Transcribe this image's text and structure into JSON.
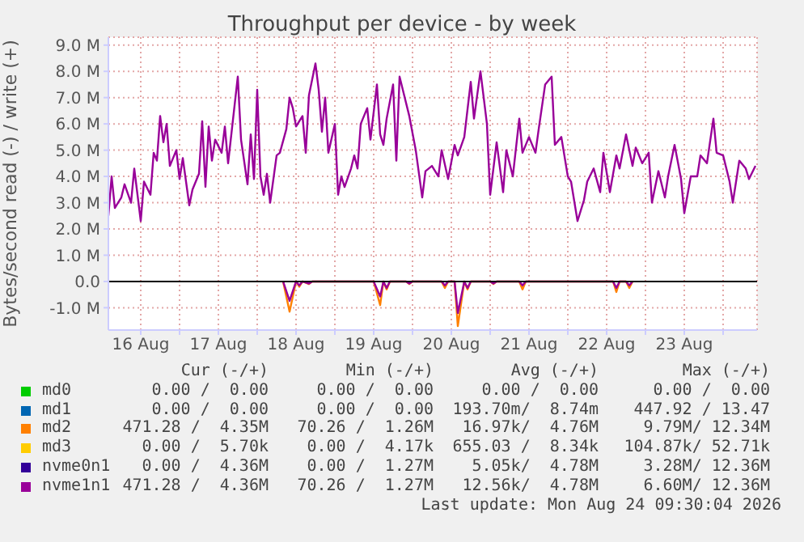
{
  "chart_data": {
    "type": "line",
    "title": "Throughput per device - by week",
    "ylabel": "Bytes/second read (-) / write (+)",
    "x": [
      "2026-08-16T02:00",
      "2026-08-16T03:00",
      "2026-08-16T04:00",
      "2026-08-16T06:00",
      "2026-08-16T07:00",
      "2026-08-16T09:00",
      "2026-08-16T10:00",
      "2026-08-16T12:00",
      "2026-08-16T13:00",
      "2026-08-16T15:00",
      "2026-08-16T16:00",
      "2026-08-16T17:00",
      "2026-08-16T18:00",
      "2026-08-16T19:00",
      "2026-08-16T20:00",
      "2026-08-16T21:00",
      "2026-08-16T23:00",
      "2026-08-17T00:00",
      "2026-08-17T01:00",
      "2026-08-17T03:00",
      "2026-08-17T04:00",
      "2026-08-17T06:00",
      "2026-08-17T07:00",
      "2026-08-17T08:00",
      "2026-08-17T09:00",
      "2026-08-17T10:00",
      "2026-08-17T11:00",
      "2026-08-17T13:00",
      "2026-08-17T14:00",
      "2026-08-17T15:00",
      "2026-08-17T16:00",
      "2026-08-17T18:00",
      "2026-08-17T19:00",
      "2026-08-17T21:00",
      "2026-08-17T22:00",
      "2026-08-17T23:00",
      "2026-08-18T00:00",
      "2026-08-18T01:00",
      "2026-08-18T02:00",
      "2026-08-18T03:00",
      "2026-08-18T04:00",
      "2026-08-18T06:00",
      "2026-08-18T07:00",
      "2026-08-18T09:00",
      "2026-08-18T10:00",
      "2026-08-18T11:00",
      "2026-08-18T12:00",
      "2026-08-18T14:00",
      "2026-08-18T15:00",
      "2026-08-18T16:00",
      "2026-08-18T18:00",
      "2026-08-18T19:00",
      "2026-08-18T20:00",
      "2026-08-18T21:00",
      "2026-08-18T22:00",
      "2026-08-19T00:00",
      "2026-08-19T01:00",
      "2026-08-19T02:00",
      "2026-08-19T03:00",
      "2026-08-19T05:00",
      "2026-08-19T06:00",
      "2026-08-19T07:00",
      "2026-08-19T08:00",
      "2026-08-19T10:00",
      "2026-08-19T11:00",
      "2026-08-19T13:00",
      "2026-08-19T14:00",
      "2026-08-19T15:00",
      "2026-08-19T16:00",
      "2026-08-19T18:00",
      "2026-08-19T19:00",
      "2026-08-19T20:00",
      "2026-08-19T21:00",
      "2026-08-19T23:00",
      "2026-08-20T01:00",
      "2026-08-20T03:00",
      "2026-08-20T04:00",
      "2026-08-20T06:00",
      "2026-08-20T08:00",
      "2026-08-20T09:00",
      "2026-08-20T11:00",
      "2026-08-20T13:00",
      "2026-08-20T14:00",
      "2026-08-20T16:00",
      "2026-08-20T18:00",
      "2026-08-20T19:00",
      "2026-08-20T21:00",
      "2026-08-20T23:00",
      "2026-08-21T00:00",
      "2026-08-21T02:00",
      "2026-08-21T04:00",
      "2026-08-21T05:00",
      "2026-08-21T07:00",
      "2026-08-21T09:00",
      "2026-08-21T10:00",
      "2026-08-21T12:00",
      "2026-08-21T14:00",
      "2026-08-21T15:00",
      "2026-08-21T17:00",
      "2026-08-21T19:00",
      "2026-08-21T20:00",
      "2026-08-21T22:00",
      "2026-08-22T00:00",
      "2026-08-22T01:00",
      "2026-08-22T03:00",
      "2026-08-22T05:00",
      "2026-08-22T06:00",
      "2026-08-22T08:00",
      "2026-08-22T10:00",
      "2026-08-22T11:00",
      "2026-08-22T13:00",
      "2026-08-22T15:00",
      "2026-08-22T16:00",
      "2026-08-22T18:00",
      "2026-08-22T20:00",
      "2026-08-22T21:00",
      "2026-08-22T23:00",
      "2026-08-23T01:00",
      "2026-08-23T02:00",
      "2026-08-23T04:00",
      "2026-08-23T06:00",
      "2026-08-23T07:00",
      "2026-08-23T09:00",
      "2026-08-23T11:00",
      "2026-08-23T12:00",
      "2026-08-23T14:00",
      "2026-08-23T16:00",
      "2026-08-23T17:00",
      "2026-08-23T19:00",
      "2026-08-23T21:00",
      "2026-08-23T22:00",
      "2026-08-24T00:00",
      "2026-08-24T02:00",
      "2026-08-24T03:00",
      "2026-08-24T05:00",
      "2026-08-24T07:00",
      "2026-08-24T08:00",
      "2026-08-24T10:00"
    ],
    "series": [
      {
        "name": "md0",
        "color": "#00cc00",
        "values": [
          null,
          null,
          null,
          null,
          null,
          null,
          null,
          null,
          null,
          null,
          null,
          null,
          null,
          null,
          null,
          null,
          null,
          null,
          null,
          null,
          null,
          null,
          null,
          null,
          null,
          null,
          null,
          null,
          null,
          null,
          null,
          null,
          null,
          null,
          null,
          null,
          null,
          null,
          null,
          null,
          null,
          null,
          null,
          null,
          null,
          null,
          null,
          null,
          null,
          null,
          null,
          null,
          null,
          null,
          null,
          null,
          null,
          null,
          null,
          null,
          null,
          null,
          null,
          null,
          null,
          null,
          null,
          null,
          null,
          null,
          null,
          null,
          null,
          null,
          null,
          null,
          null,
          null,
          null,
          null,
          null,
          null,
          null,
          null,
          null,
          null,
          null,
          null,
          null,
          null,
          null,
          null,
          null,
          null,
          null,
          null,
          null,
          null,
          null,
          null,
          null,
          null,
          null,
          null,
          null,
          null,
          null,
          null,
          null,
          null,
          null,
          null,
          null,
          null,
          null,
          null,
          null,
          null,
          null,
          null,
          null,
          null,
          null,
          null,
          null,
          null,
          null,
          null,
          null,
          null,
          null,
          null,
          null,
          null,
          null,
          null,
          null,
          null
        ]
      },
      {
        "name": "md1",
        "color": "#0066b3",
        "values": [
          null,
          null,
          null,
          null,
          null,
          null,
          null,
          null,
          null,
          null,
          null,
          null,
          null,
          null,
          null,
          null,
          null,
          null,
          null,
          null,
          null,
          null,
          null,
          null,
          null,
          null,
          null,
          null,
          null,
          null,
          null,
          null,
          null,
          null,
          null,
          null,
          null,
          null,
          null,
          null,
          null,
          null,
          null,
          null,
          null,
          null,
          null,
          null,
          null,
          null,
          null,
          null,
          null,
          null,
          null,
          null,
          null,
          null,
          null,
          null,
          null,
          null,
          null,
          null,
          null,
          null,
          null,
          null,
          null,
          null,
          null,
          null,
          null,
          null,
          null,
          null,
          null,
          null,
          null,
          null,
          null,
          null,
          null,
          null,
          null,
          null,
          null,
          null,
          null,
          null,
          null,
          null,
          null,
          null,
          null,
          null,
          null,
          null,
          null,
          null,
          null,
          null,
          null,
          null,
          null,
          null,
          null,
          null,
          null,
          null,
          null,
          null,
          null,
          null,
          null,
          null,
          null,
          null,
          null,
          null,
          null,
          null,
          null,
          null,
          null,
          null,
          null,
          null,
          null,
          null,
          null,
          null,
          null,
          null,
          null,
          null,
          null,
          null
        ]
      },
      {
        "name": "md2",
        "color": "#ff8000",
        "x": [
          "2026-08-18T08:00",
          "2026-08-18T10:00",
          "2026-08-18T12:00",
          "2026-08-18T13:00",
          "2026-08-18T14:00",
          "2026-08-18T16:00",
          "2026-08-18T17:00",
          "2026-08-19T12:00",
          "2026-08-19T14:00",
          "2026-08-19T15:00",
          "2026-08-19T16:00",
          "2026-08-19T17:00",
          "2026-08-19T22:00",
          "2026-08-19T23:00",
          "2026-08-20T00:00",
          "2026-08-20T09:00",
          "2026-08-20T10:00",
          "2026-08-20T11:00",
          "2026-08-20T13:00",
          "2026-08-20T14:00",
          "2026-08-20T16:00",
          "2026-08-20T17:00",
          "2026-08-20T18:00",
          "2026-08-21T00:00",
          "2026-08-21T01:00",
          "2026-08-21T02:00",
          "2026-08-21T09:00",
          "2026-08-21T10:00",
          "2026-08-21T11:00",
          "2026-08-22T14:00",
          "2026-08-22T15:00",
          "2026-08-22T16:00",
          "2026-08-22T18:00",
          "2026-08-22T19:00",
          "2026-08-22T20:00"
        ],
        "values": [
          0,
          -1150000,
          0,
          -200000,
          0,
          -100000,
          0,
          0,
          -900000,
          0,
          -300000,
          0,
          0,
          -100000,
          0,
          0,
          -250000,
          0,
          0,
          -1700000,
          0,
          -300000,
          0,
          0,
          -100000,
          0,
          0,
          -300000,
          0,
          0,
          -400000,
          0,
          0,
          -250000,
          0
        ]
      },
      {
        "name": "md3",
        "color": "#ffcc00",
        "values": [
          null,
          null,
          null,
          null,
          null,
          null,
          null,
          null,
          null,
          null,
          null,
          null,
          null,
          null,
          null,
          null,
          null,
          null,
          null,
          null,
          null,
          null,
          null,
          null,
          null,
          null,
          null,
          null,
          null,
          null,
          null,
          null,
          null,
          null,
          null,
          null,
          null,
          null,
          null,
          null,
          null,
          null,
          null,
          null,
          null,
          null,
          null,
          null,
          null,
          null,
          null,
          null,
          null,
          null,
          null,
          null,
          null,
          null,
          null,
          null,
          null,
          null,
          null,
          null,
          null,
          null,
          null,
          null,
          null,
          null,
          null,
          null,
          null,
          null,
          null,
          null,
          null,
          null,
          null,
          null,
          null,
          null,
          null,
          null,
          null,
          null,
          null,
          null,
          null,
          null,
          null,
          null,
          null,
          null,
          null,
          null,
          null,
          null,
          null,
          null,
          null,
          null,
          null,
          null,
          null,
          null,
          null,
          null,
          null,
          null,
          null,
          null,
          null,
          null,
          null,
          null,
          null,
          null,
          null,
          null,
          null,
          null,
          null,
          null,
          null,
          null,
          null,
          null,
          null,
          null,
          null,
          null,
          null,
          null,
          null,
          null,
          null,
          null
        ]
      },
      {
        "name": "nvme0n1",
        "color": "#330099",
        "values": [
          null,
          null,
          null,
          null,
          null,
          null,
          null,
          null,
          null,
          null,
          null,
          null,
          null,
          null,
          null,
          null,
          null,
          null,
          null,
          null,
          null,
          null,
          null,
          null,
          null,
          null,
          null,
          null,
          null,
          null,
          null,
          null,
          null,
          null,
          null,
          null,
          null,
          null,
          null,
          null,
          null,
          null,
          null,
          null,
          null,
          null,
          null,
          null,
          null,
          null,
          null,
          null,
          null,
          null,
          null,
          null,
          null,
          null,
          null,
          null,
          null,
          null,
          null,
          null,
          null,
          null,
          null,
          null,
          null,
          null,
          null,
          null,
          null,
          null,
          null,
          null,
          null,
          null,
          null,
          null,
          null,
          null,
          null,
          null,
          null,
          null,
          null,
          null,
          null,
          null,
          null,
          null,
          null,
          null,
          null,
          null,
          null,
          null,
          null,
          null,
          null,
          null,
          null,
          null,
          null,
          null,
          null,
          null,
          null,
          null,
          null,
          null,
          null,
          null,
          null,
          null,
          null,
          null,
          null,
          null,
          null,
          null,
          null,
          null,
          null,
          null,
          null,
          null,
          null,
          null,
          null,
          null,
          null,
          null,
          null,
          null,
          null,
          null
        ]
      },
      {
        "name": "nvme1n1",
        "color": "#990099",
        "values": [
          2500000,
          4000000,
          2800000,
          3200000,
          3700000,
          3000000,
          4300000,
          2300000,
          3800000,
          3300000,
          4900000,
          4600000,
          6300000,
          5300000,
          6000000,
          4400000,
          5000000,
          3900000,
          4700000,
          2900000,
          3500000,
          4100000,
          6100000,
          3600000,
          5900000,
          4600000,
          5400000,
          4900000,
          5900000,
          4500000,
          5600000,
          7800000,
          5400000,
          3700000,
          5600000,
          3900000,
          7300000,
          4000000,
          3300000,
          4100000,
          3000000,
          4800000,
          4900000,
          5800000,
          7000000,
          6600000,
          5900000,
          6300000,
          4900000,
          7100000,
          8300000,
          7300000,
          5700000,
          7000000,
          4900000,
          6000000,
          3300000,
          4000000,
          3600000,
          4300000,
          4800000,
          4300000,
          6000000,
          6600000,
          5400000,
          7500000,
          5600000,
          5200000,
          6200000,
          7500000,
          4600000,
          7800000,
          7300000,
          6300000,
          5000000,
          3200000,
          4200000,
          4400000,
          4000000,
          5000000,
          3900000,
          5200000,
          4800000,
          5500000,
          7600000,
          6200000,
          8000000,
          6000000,
          3300000,
          5300000,
          3400000,
          5000000,
          4000000,
          6200000,
          4900000,
          5500000,
          4900000,
          5800000,
          7500000,
          7800000,
          5200000,
          5500000,
          4000000,
          3800000,
          2300000,
          3100000,
          3800000,
          4300000,
          3400000,
          4900000,
          3400000,
          4800000,
          4300000,
          5600000,
          4400000,
          5100000,
          4500000,
          4900000,
          3000000,
          4200000,
          3200000,
          4000000,
          5200000,
          3900000,
          2600000,
          4000000,
          4000000,
          4800000,
          4500000,
          6200000,
          4900000,
          4800000,
          3800000,
          3000000,
          4600000,
          4300000,
          3900000,
          4400000
        ]
      },
      {
        "color": "#990099",
        "x": [
          "2026-08-18T08:00",
          "2026-08-18T10:00",
          "2026-08-18T12:00",
          "2026-08-18T13:00",
          "2026-08-18T14:00",
          "2026-08-18T16:00",
          "2026-08-18T17:00",
          "2026-08-19T12:00",
          "2026-08-19T14:00",
          "2026-08-19T15:00",
          "2026-08-19T16:00",
          "2026-08-19T17:00",
          "2026-08-19T22:00",
          "2026-08-19T23:00",
          "2026-08-20T00:00",
          "2026-08-20T09:00",
          "2026-08-20T10:00",
          "2026-08-20T11:00",
          "2026-08-20T13:00",
          "2026-08-20T14:00",
          "2026-08-20T16:00",
          "2026-08-20T17:00",
          "2026-08-20T18:00",
          "2026-08-21T00:00",
          "2026-08-21T01:00",
          "2026-08-21T02:00",
          "2026-08-21T09:00",
          "2026-08-21T10:00",
          "2026-08-21T11:00",
          "2026-08-22T14:00",
          "2026-08-22T15:00",
          "2026-08-22T16:00",
          "2026-08-22T18:00",
          "2026-08-22T19:00",
          "2026-08-22T20:00"
        ],
        "values": [
          0,
          -740000,
          0,
          -150000,
          0,
          -80000,
          0,
          0,
          -570000,
          0,
          -250000,
          0,
          0,
          -80000,
          0,
          0,
          -150000,
          0,
          0,
          -1200000,
          0,
          -250000,
          0,
          0,
          -80000,
          0,
          0,
          -150000,
          0,
          0,
          -250000,
          0,
          0,
          -150000,
          0
        ]
      }
    ],
    "xlim": [
      "2026-08-16T02:00",
      "2026-08-24T10:30"
    ],
    "xticks": [
      {
        "value": "2026-08-16T12:00",
        "label": "16 Aug"
      },
      {
        "value": "2026-08-17T00:00",
        "label": null
      },
      {
        "value": "2026-08-17T12:00",
        "label": "17 Aug"
      },
      {
        "value": "2026-08-18T00:00",
        "label": null
      },
      {
        "value": "2026-08-18T12:00",
        "label": "18 Aug"
      },
      {
        "value": "2026-08-19T00:00",
        "label": null
      },
      {
        "value": "2026-08-19T12:00",
        "label": "19 Aug"
      },
      {
        "value": "2026-08-20T00:00",
        "label": null
      },
      {
        "value": "2026-08-20T12:00",
        "label": "20 Aug"
      },
      {
        "value": "2026-08-21T00:00",
        "label": null
      },
      {
        "value": "2026-08-21T12:00",
        "label": "21 Aug"
      },
      {
        "value": "2026-08-22T00:00",
        "label": null
      },
      {
        "value": "2026-08-22T12:00",
        "label": "22 Aug"
      },
      {
        "value": "2026-08-23T00:00",
        "label": null
      },
      {
        "value": "2026-08-23T12:00",
        "label": "23 Aug"
      },
      {
        "value": "2026-08-24T00:00",
        "label": null
      }
    ],
    "ylim": [
      -1850000,
      9300000
    ],
    "yticks": [
      {
        "value": -1000000,
        "label": "-1.0 M"
      },
      {
        "value": 0,
        "label": "0.0"
      },
      {
        "value": 1000000,
        "label": "1.0 M"
      },
      {
        "value": 2000000,
        "label": "2.0 M"
      },
      {
        "value": 3000000,
        "label": "3.0 M"
      },
      {
        "value": 4000000,
        "label": "4.0 M"
      },
      {
        "value": 5000000,
        "label": "5.0 M"
      },
      {
        "value": 6000000,
        "label": "6.0 M"
      },
      {
        "value": 7000000,
        "label": "7.0 M"
      },
      {
        "value": 8000000,
        "label": "8.0 M"
      },
      {
        "value": 9000000,
        "label": "9.0 M"
      }
    ],
    "ref_lines": [
      {
        "axis": "y",
        "value": 0,
        "color": "#000000"
      }
    ],
    "grid": true,
    "legend": "bottom",
    "marker": "none",
    "annotations": [
      "Cur (-/+)",
      "Min (-/+)",
      "Avg (-/+)",
      "Max (-/+)",
      "0.00 /  0.00",
      "0.00 /  0.00",
      "0.00 /  0.00",
      "0.00 /  0.00",
      "0.00 /  0.00",
      "0.00 /  0.00",
      "193.70m/  8.74m",
      "447.92 / 13.47",
      "471.28 /  4.35M",
      "70.26 /  1.26M",
      "16.97k/  4.76M",
      "9.79M/ 12.34M",
      "0.00 /  5.70k",
      "0.00 /  4.17k",
      "655.03 /  8.34k",
      "104.87k/ 52.71k",
      "0.00 /  4.36M",
      "0.00 /  1.27M",
      "5.05k/  4.78M",
      "3.28M/ 12.36M",
      "471.28 /  4.36M",
      "70.26 /  1.27M",
      "12.56k/  4.78M",
      "6.60M/ 12.36M",
      "Last update: Mon Aug 24 09:30:04 2026"
    ]
  }
}
